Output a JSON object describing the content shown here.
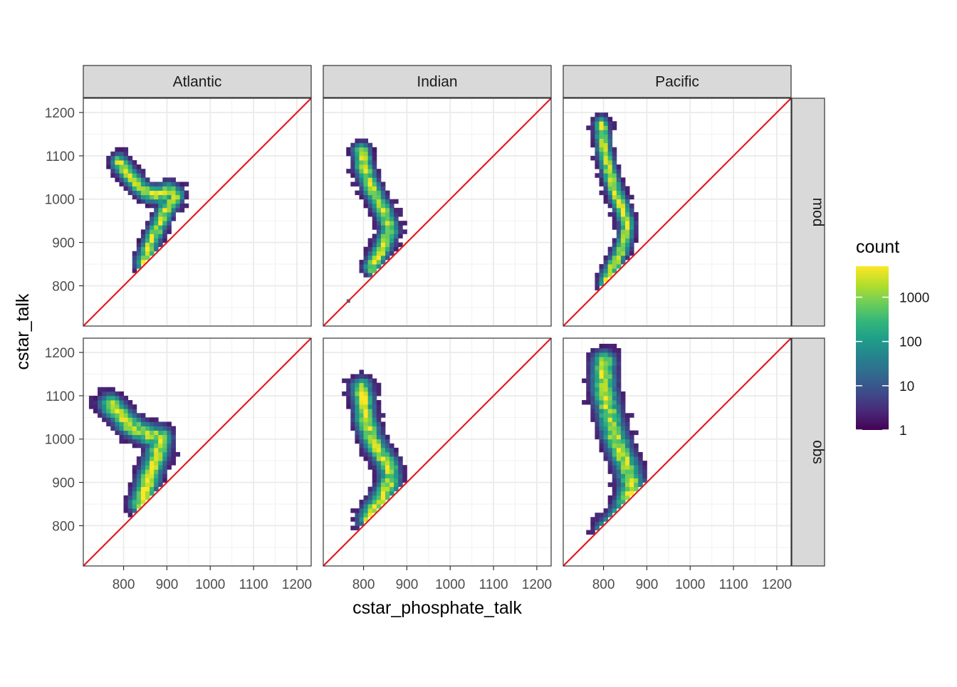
{
  "chart_data": {
    "type": "heatmap",
    "xlabel": "cstar_phosphate_talk",
    "ylabel": "cstar_talk",
    "xlim": [
      707,
      1233
    ],
    "ylim": [
      707,
      1233
    ],
    "x_ticks": [
      800,
      900,
      1000,
      1100,
      1200
    ],
    "y_ticks": [
      800,
      900,
      1000,
      1100,
      1200
    ],
    "x_tick_labels": [
      "800",
      "900",
      "1000",
      "1100",
      "1200"
    ],
    "y_tick_labels": [
      "800",
      "900",
      "1000",
      "1100",
      "1200"
    ],
    "col_facets": [
      "Atlantic",
      "Indian",
      "Pacific"
    ],
    "row_facets": [
      "mod",
      "obs"
    ],
    "reference_line": {
      "slope": 1,
      "intercept": 0,
      "color": "#e41a1c"
    },
    "grid": true,
    "legend": {
      "title": "count",
      "placement": "right",
      "scale": "log10",
      "range": [
        1,
        5000
      ],
      "ticks": [
        1,
        10,
        100,
        1000
      ],
      "tick_labels": [
        "1",
        "10",
        "100",
        "1000"
      ],
      "palette": [
        "#440154",
        "#482878",
        "#3e4a89",
        "#31688e",
        "#26828e",
        "#1f9e89",
        "#35b779",
        "#6ece58",
        "#b5de2b",
        "#fde725"
      ]
    },
    "bin_width": 10,
    "panels": [
      {
        "ocean": "Atlantic",
        "dataset": "mod",
        "ridge": [
          [
            790,
            1085
          ],
          [
            810,
            1060
          ],
          [
            830,
            1035
          ],
          [
            855,
            1015
          ],
          [
            880,
            1010
          ],
          [
            905,
            1020
          ],
          [
            920,
            1010
          ],
          [
            900,
            980
          ],
          [
            885,
            950
          ],
          [
            870,
            915
          ],
          [
            855,
            880
          ],
          [
            845,
            855
          ]
        ],
        "hot": [
          [
            870,
            1012
          ],
          [
            885,
            1012
          ]
        ],
        "spread_x": 20,
        "spread_y": 22
      },
      {
        "ocean": "Indian",
        "dataset": "mod",
        "ridge": [
          [
            795,
            1110
          ],
          [
            800,
            1075
          ],
          [
            815,
            1035
          ],
          [
            830,
            1000
          ],
          [
            850,
            965
          ],
          [
            860,
            930
          ],
          [
            850,
            900
          ],
          [
            835,
            870
          ],
          [
            820,
            845
          ]
        ],
        "hot": [
          [
            800,
            1070
          ],
          [
            805,
            1090
          ]
        ],
        "spread_x": 22,
        "spread_y": 22,
        "outliers": [
          [
            765,
            765
          ]
        ]
      },
      {
        "ocean": "Pacific",
        "dataset": "mod",
        "ridge": [
          [
            795,
            1170
          ],
          [
            800,
            1120
          ],
          [
            810,
            1075
          ],
          [
            820,
            1040
          ],
          [
            830,
            1010
          ],
          [
            845,
            975
          ],
          [
            855,
            940
          ],
          [
            850,
            905
          ],
          [
            835,
            870
          ],
          [
            820,
            840
          ],
          [
            805,
            810
          ]
        ],
        "hot": [
          [
            800,
            1130
          ],
          [
            805,
            1100
          ],
          [
            800,
            1160
          ]
        ],
        "spread_x": 18,
        "spread_y": 22
      },
      {
        "ocean": "Atlantic",
        "dataset": "obs",
        "ridge": [
          [
            770,
            1080
          ],
          [
            790,
            1060
          ],
          [
            810,
            1035
          ],
          [
            835,
            1020
          ],
          [
            860,
            1010
          ],
          [
            885,
            1005
          ],
          [
            880,
            975
          ],
          [
            870,
            945
          ],
          [
            860,
            915
          ],
          [
            850,
            880
          ],
          [
            840,
            850
          ]
        ],
        "hot": [
          [
            860,
            1010
          ],
          [
            880,
            1008
          ]
        ],
        "spread_x": 28,
        "spread_y": 26
      },
      {
        "ocean": "Indian",
        "dataset": "obs",
        "ridge": [
          [
            795,
            1120
          ],
          [
            800,
            1080
          ],
          [
            805,
            1040
          ],
          [
            820,
            1000
          ],
          [
            840,
            965
          ],
          [
            860,
            935
          ],
          [
            860,
            900
          ],
          [
            845,
            870
          ],
          [
            825,
            840
          ],
          [
            810,
            815
          ]
        ],
        "hot": [
          [
            800,
            1075
          ],
          [
            805,
            1090
          ]
        ],
        "spread_x": 26,
        "spread_y": 24
      },
      {
        "ocean": "Pacific",
        "dataset": "obs",
        "ridge": [
          [
            800,
            1180
          ],
          [
            800,
            1130
          ],
          [
            805,
            1090
          ],
          [
            815,
            1050
          ],
          [
            825,
            1010
          ],
          [
            840,
            970
          ],
          [
            855,
            935
          ],
          [
            865,
            900
          ],
          [
            860,
            870
          ],
          [
            850,
            840
          ],
          [
            830,
            810
          ],
          [
            810,
            790
          ]
        ],
        "hot": [
          [
            800,
            1110
          ],
          [
            800,
            1090
          ],
          [
            805,
            1150
          ]
        ],
        "spread_x": 30,
        "spread_y": 26
      }
    ]
  }
}
